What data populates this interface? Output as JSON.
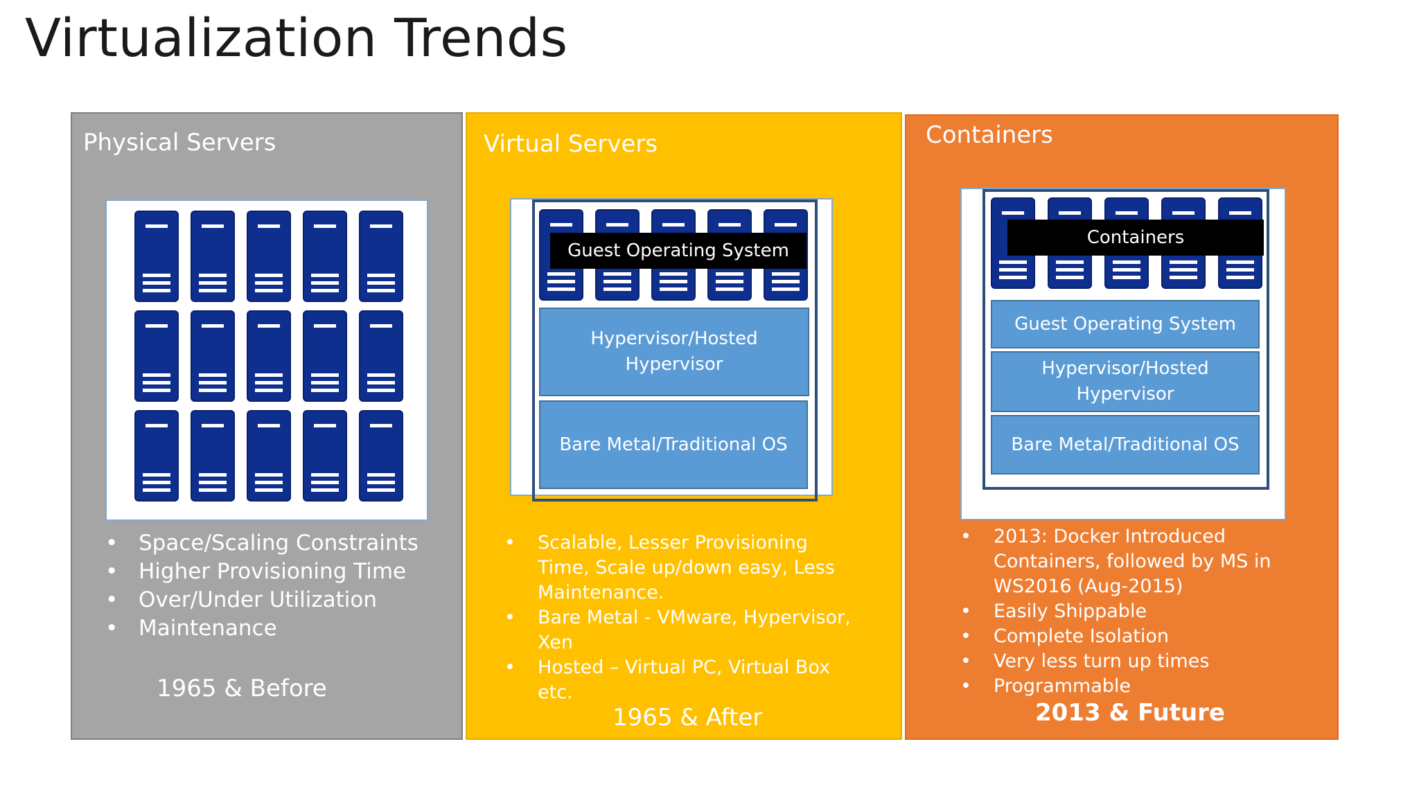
{
  "slide": {
    "title": "Virtualization Trends"
  },
  "colors": {
    "physical_panel": "#a5a5a5",
    "virtual_panel": "#ffc000",
    "containers_panel": "#ed7d31",
    "server_blue": "#0f2f8f",
    "layer_blue": "#5b9bd5",
    "bar_black": "#000000"
  },
  "panels": [
    {
      "title": "Physical Servers",
      "bullets": [
        "Space/Scaling Constraints",
        "Higher Provisioning Time",
        "Over/Under Utilization",
        "Maintenance"
      ],
      "era": "1965 & Before"
    },
    {
      "title": "Virtual Servers",
      "overlay_bar": "Guest Operating System",
      "layers": [
        "Hypervisor/Hosted Hypervisor",
        "Bare Metal/Traditional OS"
      ],
      "bullets": [
        "Scalable, Lesser Provisioning Time, Scale up/down easy, Less Maintenance.",
        "Bare Metal - VMware, Hypervisor, Xen",
        "Hosted – Virtual PC, Virtual Box etc."
      ],
      "era": "1965 & After"
    },
    {
      "title": "Containers",
      "overlay_bar": "Containers",
      "layers": [
        "Guest Operating System",
        "Hypervisor/Hosted Hypervisor",
        "Bare Metal/Traditional OS"
      ],
      "bullets": [
        "2013: Docker Introduced Containers, followed by MS in WS2016 (Aug-2015)",
        "Easily Shippable",
        "Complete Isolation",
        "Very less turn up times",
        "Programmable"
      ],
      "era": "2013 & Future"
    }
  ]
}
